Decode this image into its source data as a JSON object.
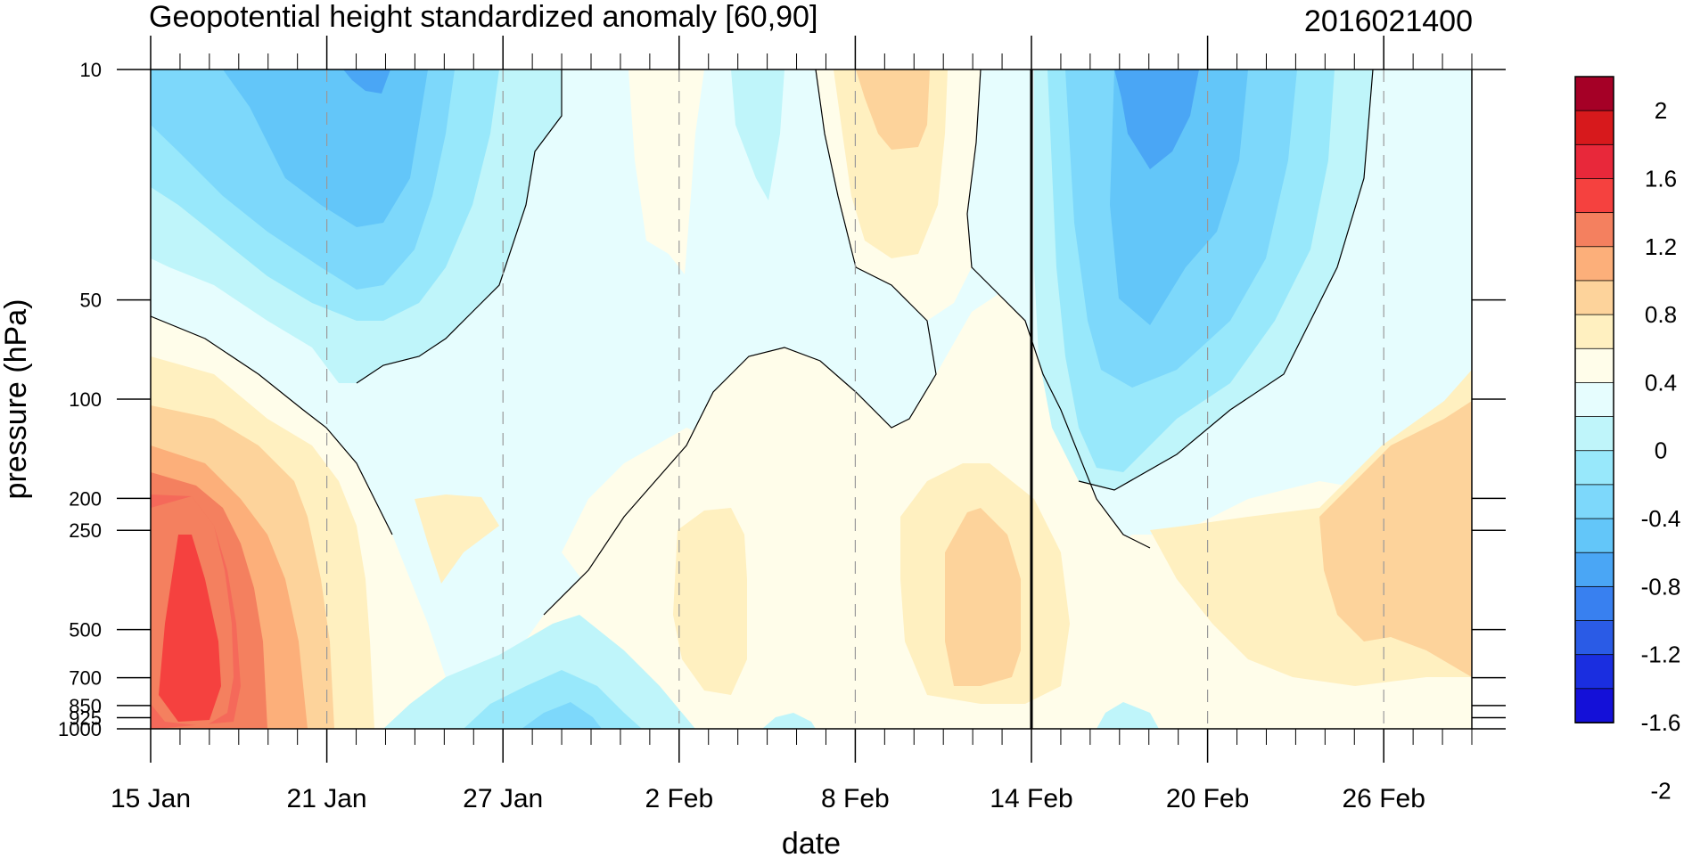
{
  "chart_data": {
    "type": "heatmap",
    "title": "Geopotential height standardized anomaly [60,90]",
    "title_right": "2016021400",
    "xlabel": "date",
    "ylabel": "pressure (hPa)",
    "x_tick_labels": [
      "15 Jan",
      "21 Jan",
      "27 Jan",
      "2 Feb",
      "8 Feb",
      "14 Feb",
      "20 Feb",
      "26 Feb"
    ],
    "x_tick_days": [
      0,
      6,
      12,
      18,
      24,
      30,
      36,
      42
    ],
    "x_range_days": [
      0,
      45
    ],
    "highlight_day": 30,
    "y_tick_labels": [
      "10",
      "50",
      "100",
      "200",
      "250",
      "500",
      "700",
      "850",
      "925",
      "1000"
    ],
    "y_tick_values": [
      10,
      50,
      100,
      200,
      250,
      500,
      700,
      850,
      925,
      1000
    ],
    "y_range": [
      10,
      1000
    ],
    "y_scale": "log",
    "y_reversed": true,
    "colorbar": {
      "labels": [
        "2",
        "1.6",
        "1.2",
        "0.8",
        "0.4",
        "0",
        "-0.4",
        "-0.8",
        "-1.2",
        "-1.6",
        "-2"
      ],
      "colors": [
        "#a50026",
        "#d7191c",
        "#e8283a",
        "#f5413f",
        "#f4805f",
        "#fcaf7a",
        "#fdd39b",
        "#fff0c0",
        "#fffdea",
        "#e6fdfe",
        "#bff5fa",
        "#98e8fb",
        "#7dd8fb",
        "#63c6f9",
        "#4aa6f5",
        "#3880f0",
        "#2a5be6",
        "#1a2ee0",
        "#1410d8"
      ]
    },
    "grid": "dashed vertical at date ticks"
  }
}
